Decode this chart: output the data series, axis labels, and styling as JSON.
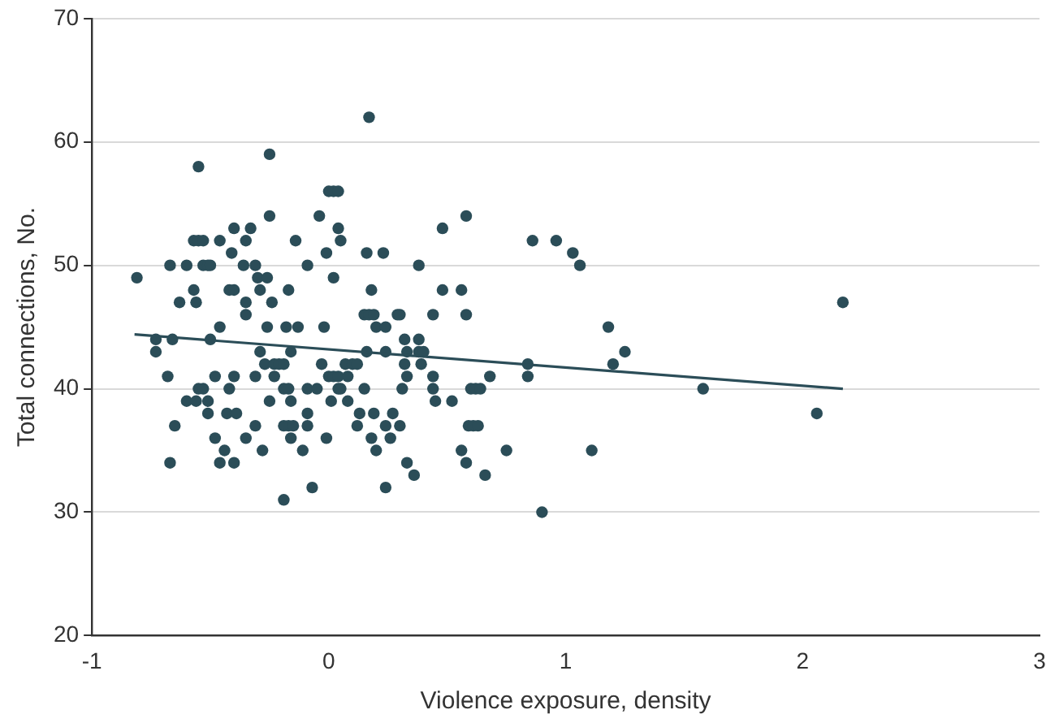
{
  "chart_data": {
    "type": "scatter",
    "xlabel": "Violence exposure, density",
    "ylabel": "Total connections, No.",
    "xlim": [
      -1,
      3
    ],
    "xticks": [
      -1,
      0,
      1,
      2,
      3
    ],
    "ylim": [
      20,
      70
    ],
    "yticks": [
      20,
      30,
      40,
      50,
      60,
      70
    ],
    "grid": "y",
    "legend": false,
    "marker": "circle",
    "series": [
      {
        "color": "#2b4d58",
        "x": [
          0.17,
          -0.25,
          -0.55,
          0.0,
          0.02,
          0.04,
          -0.25,
          -0.04,
          0.58,
          -0.4,
          -0.33,
          0.04,
          0.48,
          -0.57,
          -0.55,
          -0.53,
          -0.46,
          -0.35,
          -0.14,
          0.05,
          0.86,
          0.96,
          -0.41,
          -0.01,
          0.16,
          0.23,
          1.03,
          -0.67,
          -0.6,
          -0.53,
          -0.51,
          -0.5,
          -0.36,
          -0.31,
          -0.09,
          0.38,
          1.06,
          -0.81,
          -0.3,
          -0.26,
          0.02,
          -0.57,
          -0.42,
          -0.4,
          -0.29,
          -0.17,
          0.18,
          0.48,
          0.56,
          -0.63,
          -0.56,
          -0.35,
          -0.24,
          2.17,
          -0.35,
          0.15,
          0.17,
          0.19,
          0.29,
          0.3,
          0.44,
          0.58,
          -0.46,
          -0.26,
          -0.18,
          -0.13,
          -0.02,
          0.2,
          0.24,
          1.18,
          -0.73,
          -0.66,
          -0.5,
          0.32,
          0.38,
          -0.73,
          -0.29,
          -0.16,
          0.16,
          0.24,
          0.33,
          0.38,
          0.4,
          1.25,
          -0.27,
          -0.23,
          -0.21,
          -0.19,
          -0.03,
          0.07,
          0.1,
          0.12,
          0.32,
          0.39,
          0.84,
          1.2,
          -0.68,
          -0.48,
          -0.4,
          -0.31,
          -0.23,
          0.0,
          0.02,
          0.04,
          0.08,
          0.33,
          0.44,
          0.68,
          0.84,
          -0.55,
          -0.53,
          -0.42,
          -0.19,
          -0.17,
          -0.09,
          -0.05,
          0.04,
          0.05,
          0.15,
          0.31,
          0.44,
          0.6,
          0.62,
          0.64,
          1.58,
          -0.6,
          -0.56,
          -0.51,
          -0.25,
          -0.16,
          0.01,
          0.08,
          0.45,
          0.52,
          -0.51,
          -0.43,
          -0.39,
          -0.09,
          0.13,
          0.19,
          0.27,
          2.06,
          -0.65,
          -0.31,
          -0.19,
          -0.17,
          -0.15,
          -0.09,
          0.12,
          0.24,
          0.3,
          0.59,
          0.61,
          0.63,
          -0.48,
          -0.35,
          -0.16,
          -0.01,
          0.18,
          0.26,
          -0.44,
          -0.28,
          -0.11,
          0.2,
          0.56,
          0.75,
          1.11,
          -0.67,
          -0.46,
          -0.4,
          0.33,
          0.58,
          0.36,
          0.66,
          -0.07,
          0.24,
          -0.19,
          0.9
        ],
        "values": [
          62,
          59,
          58,
          56,
          56,
          56,
          54,
          54,
          54,
          53,
          53,
          53,
          53,
          52,
          52,
          52,
          52,
          52,
          52,
          52,
          52,
          52,
          51,
          51,
          51,
          51,
          51,
          50,
          50,
          50,
          50,
          50,
          50,
          50,
          50,
          50,
          50,
          49,
          49,
          49,
          49,
          48,
          48,
          48,
          48,
          48,
          48,
          48,
          48,
          47,
          47,
          47,
          47,
          47,
          46,
          46,
          46,
          46,
          46,
          46,
          46,
          46,
          45,
          45,
          45,
          45,
          45,
          45,
          45,
          45,
          44,
          44,
          44,
          44,
          44,
          43,
          43,
          43,
          43,
          43,
          43,
          43,
          43,
          43,
          42,
          42,
          42,
          42,
          42,
          42,
          42,
          42,
          42,
          42,
          42,
          42,
          41,
          41,
          41,
          41,
          41,
          41,
          41,
          41,
          41,
          41,
          41,
          41,
          41,
          40,
          40,
          40,
          40,
          40,
          40,
          40,
          40,
          40,
          40,
          40,
          40,
          40,
          40,
          40,
          40,
          39,
          39,
          39,
          39,
          39,
          39,
          39,
          39,
          39,
          38,
          38,
          38,
          38,
          38,
          38,
          38,
          38,
          37,
          37,
          37,
          37,
          37,
          37,
          37,
          37,
          37,
          37,
          37,
          37,
          36,
          36,
          36,
          36,
          36,
          36,
          35,
          35,
          35,
          35,
          35,
          35,
          35,
          34,
          34,
          34,
          34,
          34,
          33,
          33,
          32,
          32,
          31,
          30
        ]
      },
      {
        "type": "line",
        "color": "#2b4d58",
        "marker": "none",
        "line_style": "solid",
        "x": [
          -0.82,
          2.17
        ],
        "values": [
          44.4,
          40.0
        ]
      }
    ]
  }
}
